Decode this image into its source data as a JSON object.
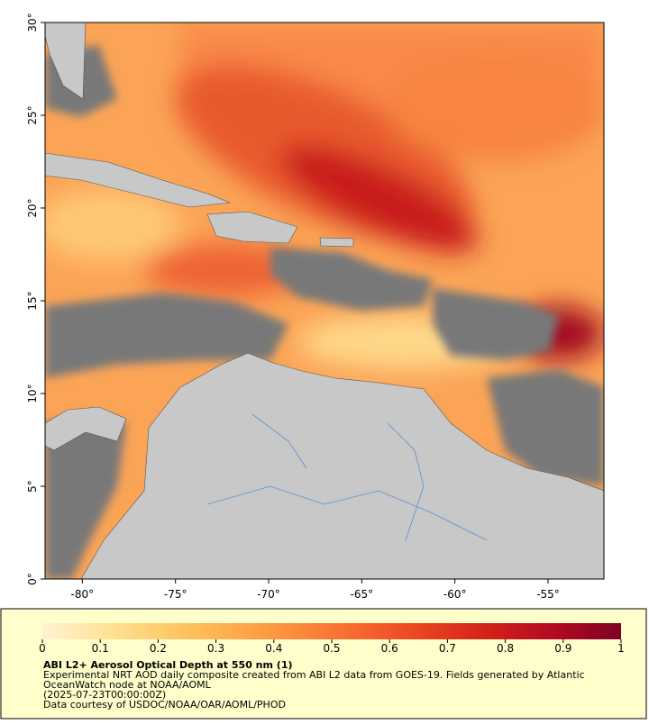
{
  "chart_data": {
    "type": "map",
    "xlim": [
      -82,
      -52
    ],
    "ylim": [
      0,
      30
    ],
    "xticks": [
      {
        "value": -80,
        "label": "-80°"
      },
      {
        "value": -75,
        "label": "-75°"
      },
      {
        "value": -70,
        "label": "-70°"
      },
      {
        "value": -65,
        "label": "-65°"
      },
      {
        "value": -60,
        "label": "-60°"
      },
      {
        "value": -55,
        "label": "-55°"
      }
    ],
    "yticks": [
      {
        "value": 0,
        "label": "0°"
      },
      {
        "value": 5,
        "label": "5°"
      },
      {
        "value": 10,
        "label": "10°"
      },
      {
        "value": 15,
        "label": "15°"
      },
      {
        "value": 20,
        "label": "20°"
      },
      {
        "value": 25,
        "label": "25°"
      },
      {
        "value": 30,
        "label": "30°"
      }
    ],
    "colorbar": {
      "lim": [
        0,
        1
      ],
      "ticks": [
        0,
        0.1,
        0.2,
        0.3,
        0.4,
        0.5,
        0.6,
        0.7,
        0.8,
        0.9,
        1
      ],
      "colors": [
        "#fff3d0",
        "#ffe29a",
        "#fec966",
        "#fdab4b",
        "#fc8a3c",
        "#f7642f",
        "#e8401e",
        "#d11f1a",
        "#b00a22",
        "#7f0026"
      ]
    },
    "title": "ABI L2+ Aerosol Optical Depth at 550 nm (1)",
    "subtitle": [
      "Experimental NRT AOD daily composite created from ABI L2 data from GOES-19. Fields generated by Atlantic",
      "OceanWatch node at NOAA/AOML",
      "(2025-07-23T00:00:00Z)",
      "Data courtesy of USDOC/NOAA/OAR/AOML/PHOD"
    ]
  }
}
